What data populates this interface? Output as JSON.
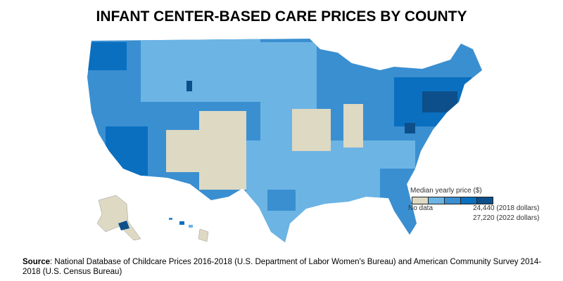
{
  "title": "INFANT CENTER-BASED CARE PRICES BY COUNTY",
  "legend": {
    "title": "Median yearly price ($)",
    "no_data_label": "No data",
    "max_label_2018": "24,440 (2018 dollars)",
    "max_label_2022": "27,220 (2022 dollars)",
    "colors": [
      "#ddd9c3",
      "#6cb4e4",
      "#3a8fd1",
      "#0a6fbf",
      "#0d4f8b"
    ]
  },
  "source": {
    "label": "Source",
    "text": ": National Database of Childcare Prices 2016-2018 (U.S. Department of Labor Women's Bureau) and American Community Survey 2014-2018 (U.S. Census Bureau)"
  }
}
